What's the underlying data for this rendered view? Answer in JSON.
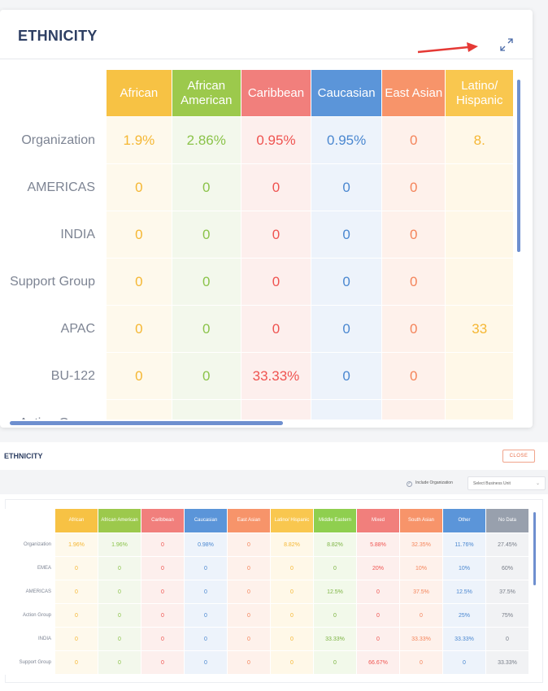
{
  "top": {
    "title": "ETHNICITY",
    "columns": [
      {
        "label": "African",
        "color": "#f7c244",
        "bg": "#fef9ec",
        "text": "#f5b733"
      },
      {
        "label": "African American",
        "color": "#9cc94c",
        "bg": "#f3f8ec",
        "text": "#8bc34a"
      },
      {
        "label": "Caribbean",
        "color": "#f17f7c",
        "bg": "#fdefed",
        "text": "#ef5350"
      },
      {
        "label": "Caucasian",
        "color": "#5b95d9",
        "bg": "#edf3fb",
        "text": "#4a87d0"
      },
      {
        "label": "East Asian",
        "color": "#f7946a",
        "bg": "#fef1eb",
        "text": "#f4845a"
      },
      {
        "label": "Latino/ Hispanic",
        "color": "#f9c74f",
        "bg": "#fff8e8",
        "text": "#f5b733"
      }
    ],
    "rows": [
      {
        "label": "Organization",
        "values": [
          "1.9%",
          "2.86%",
          "0.95%",
          "0.95%",
          "0",
          "8."
        ]
      },
      {
        "label": "AMERICAS",
        "values": [
          "0",
          "0",
          "0",
          "0",
          "0",
          ""
        ]
      },
      {
        "label": "INDIA",
        "values": [
          "0",
          "0",
          "0",
          "0",
          "0",
          ""
        ]
      },
      {
        "label": "Support Group",
        "values": [
          "0",
          "0",
          "0",
          "0",
          "0",
          ""
        ]
      },
      {
        "label": "APAC",
        "values": [
          "0",
          "0",
          "0",
          "0",
          "0",
          "33"
        ]
      },
      {
        "label": "BU-122",
        "values": [
          "0",
          "0",
          "33.33%",
          "0",
          "0",
          ""
        ]
      },
      {
        "label": "Action Group",
        "values": [
          "",
          "",
          "",
          "",
          "",
          ""
        ]
      }
    ]
  },
  "bottom": {
    "title": "ETHNICITY",
    "close_label": "CLOSE",
    "include_org_label": "Include Organization",
    "select_placeholder": "Select Business Unit",
    "columns": [
      {
        "label": "African",
        "color": "#f7c244",
        "bg": "#fef9ec",
        "text": "#f5b733"
      },
      {
        "label": "African American",
        "color": "#9cc94c",
        "bg": "#f3f8ec",
        "text": "#8bc34a"
      },
      {
        "label": "Caribbean",
        "color": "#f17f7c",
        "bg": "#fdefed",
        "text": "#ef5350"
      },
      {
        "label": "Caucasian",
        "color": "#5b95d9",
        "bg": "#edf3fb",
        "text": "#4a87d0"
      },
      {
        "label": "East Asian",
        "color": "#f7946a",
        "bg": "#fef1eb",
        "text": "#f4845a"
      },
      {
        "label": "Latino/ Hispanic",
        "color": "#f9c74f",
        "bg": "#fff8e8",
        "text": "#f5b733"
      },
      {
        "label": "Middle Eastern",
        "color": "#8fcf4f",
        "bg": "#f2f9ea",
        "text": "#7cb342"
      },
      {
        "label": "Mixed",
        "color": "#f17f7c",
        "bg": "#fdefed",
        "text": "#ef5350"
      },
      {
        "label": "South Asian",
        "color": "#f7946a",
        "bg": "#fef1eb",
        "text": "#f4845a"
      },
      {
        "label": "Other",
        "color": "#5b95d9",
        "bg": "#edf3fb",
        "text": "#4a87d0"
      },
      {
        "label": "No Data",
        "color": "#98a0ad",
        "bg": "#f1f2f4",
        "text": "#777d88"
      }
    ],
    "rows": [
      {
        "label": "Organization",
        "values": [
          "1.96%",
          "1.96%",
          "0",
          "0.98%",
          "0",
          "8.82%",
          "8.82%",
          "5.88%",
          "32.35%",
          "11.76%",
          "27.45%"
        ]
      },
      {
        "label": "EMEA",
        "values": [
          "0",
          "0",
          "0",
          "0",
          "0",
          "0",
          "0",
          "20%",
          "10%",
          "10%",
          "60%"
        ]
      },
      {
        "label": "AMERICAS",
        "values": [
          "0",
          "0",
          "0",
          "0",
          "0",
          "0",
          "12.5%",
          "0",
          "37.5%",
          "12.5%",
          "37.5%"
        ]
      },
      {
        "label": "Action Group",
        "values": [
          "0",
          "0",
          "0",
          "0",
          "0",
          "0",
          "0",
          "0",
          "0",
          "25%",
          "75%"
        ]
      },
      {
        "label": "INDIA",
        "values": [
          "0",
          "0",
          "0",
          "0",
          "0",
          "0",
          "33.33%",
          "0",
          "33.33%",
          "33.33%",
          "0"
        ]
      },
      {
        "label": "Support Group",
        "values": [
          "0",
          "0",
          "0",
          "0",
          "0",
          "0",
          "0",
          "66.67%",
          "0",
          "0",
          "33.33%"
        ]
      }
    ]
  }
}
